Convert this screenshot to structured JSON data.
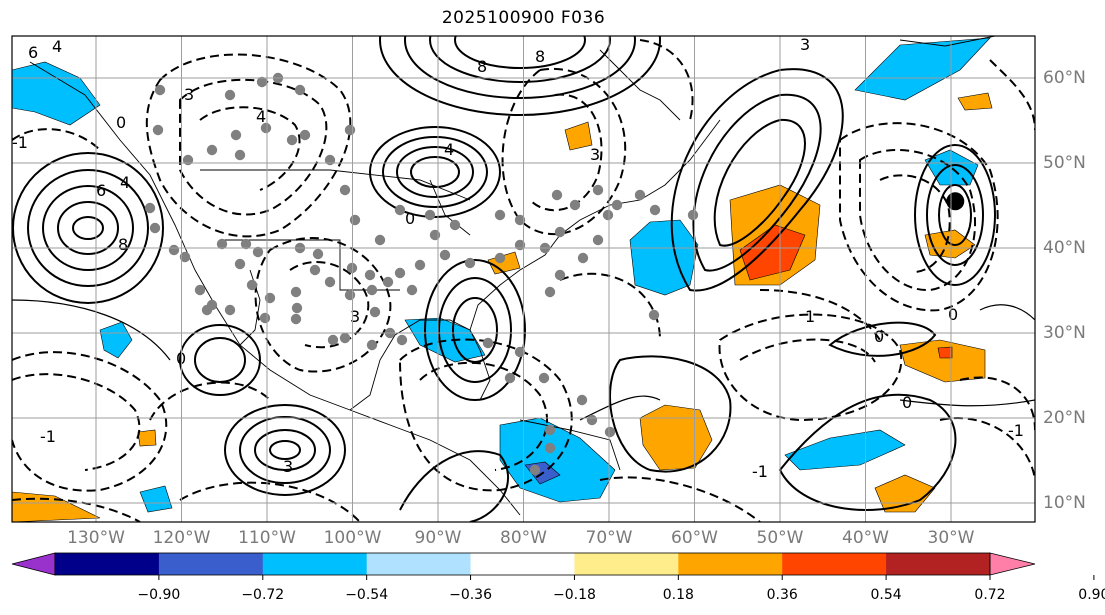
{
  "title": "2025100900 F036",
  "map": {
    "lon_labels": [
      {
        "lon": -130,
        "label": "130°W"
      },
      {
        "lon": -120,
        "label": "120°W"
      },
      {
        "lon": -110,
        "label": "110°W"
      },
      {
        "lon": -100,
        "label": "100°W"
      },
      {
        "lon": -90,
        "label": "90°W"
      },
      {
        "lon": -80,
        "label": "80°W"
      },
      {
        "lon": -70,
        "label": "70°W"
      },
      {
        "lon": -60,
        "label": "60°W"
      },
      {
        "lon": -50,
        "label": "50°W"
      },
      {
        "lon": -40,
        "label": "40°W"
      },
      {
        "lon": -30,
        "label": "30°W"
      }
    ],
    "lat_labels": [
      {
        "lat": 60,
        "label": "60°N"
      },
      {
        "lat": 50,
        "label": "50°N"
      },
      {
        "lat": 40,
        "label": "40°N"
      },
      {
        "lat": 30,
        "label": "30°N"
      },
      {
        "lat": 20,
        "label": "20°N"
      },
      {
        "lat": 10,
        "label": "10°N"
      }
    ],
    "contour_labels": [
      "6",
      "4",
      "8",
      "6",
      "4",
      "8",
      "3",
      "4",
      "8",
      "3",
      "4",
      "3",
      "0",
      "0",
      "-1",
      "3",
      "0",
      "1",
      "3",
      "0",
      "0",
      "-1",
      "0",
      "-1",
      "-1"
    ],
    "marker": {
      "lon": -29.5,
      "lat": 45.5,
      "color": "#000000"
    },
    "station_color": "#808080"
  },
  "colorbar": {
    "ticks": [
      "−0.90",
      "−0.72",
      "−0.54",
      "−0.36",
      "−0.18",
      "0.18",
      "0.36",
      "0.54",
      "0.72",
      "0.90"
    ],
    "colors": [
      "#9932cc",
      "#00008b",
      "#3a5fcd",
      "#00bfff",
      "#b0e2ff",
      "#ffffff",
      "#ffec8b",
      "#ffa500",
      "#ff4500",
      "#b22222",
      "#ff7fa8"
    ]
  }
}
